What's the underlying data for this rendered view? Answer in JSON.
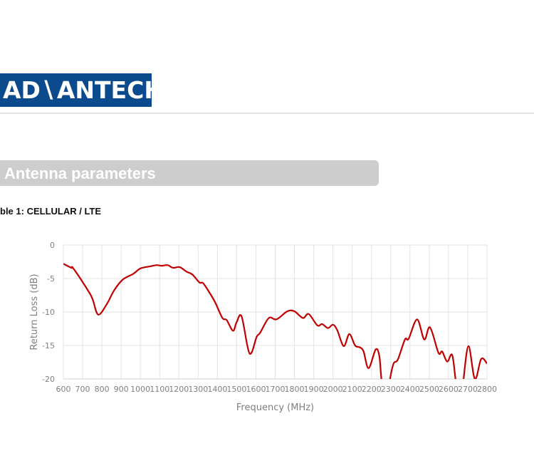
{
  "header": {
    "logo_text": "ADVANTECH",
    "logo_color": "#0c4a8e"
  },
  "section": {
    "title": "Antenna parameters"
  },
  "caption": "ble 1: CELLULAR / LTE",
  "chart_data": {
    "type": "line",
    "xlabel": "Frequency (MHz)",
    "ylabel": "Return Loss (dB)",
    "xlim": [
      600,
      2800
    ],
    "ylim": [
      -20,
      0
    ],
    "xticks": [
      600,
      700,
      800,
      900,
      1000,
      1100,
      1200,
      1300,
      1400,
      1500,
      1600,
      1700,
      1800,
      1900,
      2000,
      2100,
      2200,
      2300,
      2400,
      2500,
      2600,
      2700,
      2800
    ],
    "yticks": [
      0,
      -5,
      -10,
      -15,
      -20
    ],
    "grid": true,
    "line_color": "#c00000",
    "series": [
      {
        "x": [
          600,
          641,
          652,
          726,
          752,
          781,
          826,
          863,
          907,
          963,
          1000,
          1048,
          1085,
          1111,
          1141,
          1170,
          1204,
          1241,
          1270,
          1307,
          1326,
          1363,
          1389,
          1426,
          1448,
          1481,
          1500,
          1526,
          1567,
          1604,
          1622,
          1667,
          1707,
          1763,
          1800,
          1844,
          1874,
          1919,
          1944,
          1974,
          2000,
          2022,
          2056,
          2085,
          2115,
          2141,
          2159,
          2185,
          2222,
          2241,
          2252,
          2270,
          2285,
          2296,
          2315,
          2337,
          2374,
          2393,
          2437,
          2474,
          2504,
          2548,
          2567,
          2593,
          2619,
          2637,
          2655,
          2670,
          2678,
          2704,
          2737,
          2770,
          2800
        ],
        "y": [
          -2.8,
          -3.4,
          -3.5,
          -6.7,
          -8.1,
          -10.4,
          -8.8,
          -6.8,
          -5.2,
          -4.3,
          -3.5,
          -3.2,
          -3.0,
          -3.1,
          -3.0,
          -3.4,
          -3.3,
          -4.0,
          -4.4,
          -5.6,
          -5.7,
          -7.3,
          -8.6,
          -10.9,
          -11.2,
          -12.8,
          -11.5,
          -10.7,
          -16.2,
          -13.7,
          -13.1,
          -10.9,
          -11.1,
          -9.9,
          -9.9,
          -10.9,
          -10.3,
          -12.0,
          -11.8,
          -12.4,
          -11.9,
          -12.7,
          -15.1,
          -13.3,
          -15.0,
          -15.3,
          -15.9,
          -18.4,
          -15.6,
          -16.6,
          -20.1,
          -23,
          -23,
          -20.1,
          -17.7,
          -17.1,
          -14.1,
          -14.0,
          -11.1,
          -14.1,
          -12.3,
          -16.1,
          -15.9,
          -17.4,
          -16.4,
          -20.1,
          -23,
          -23,
          -20.1,
          -15.1,
          -20.0,
          -17.0,
          -17.7
        ]
      }
    ]
  }
}
